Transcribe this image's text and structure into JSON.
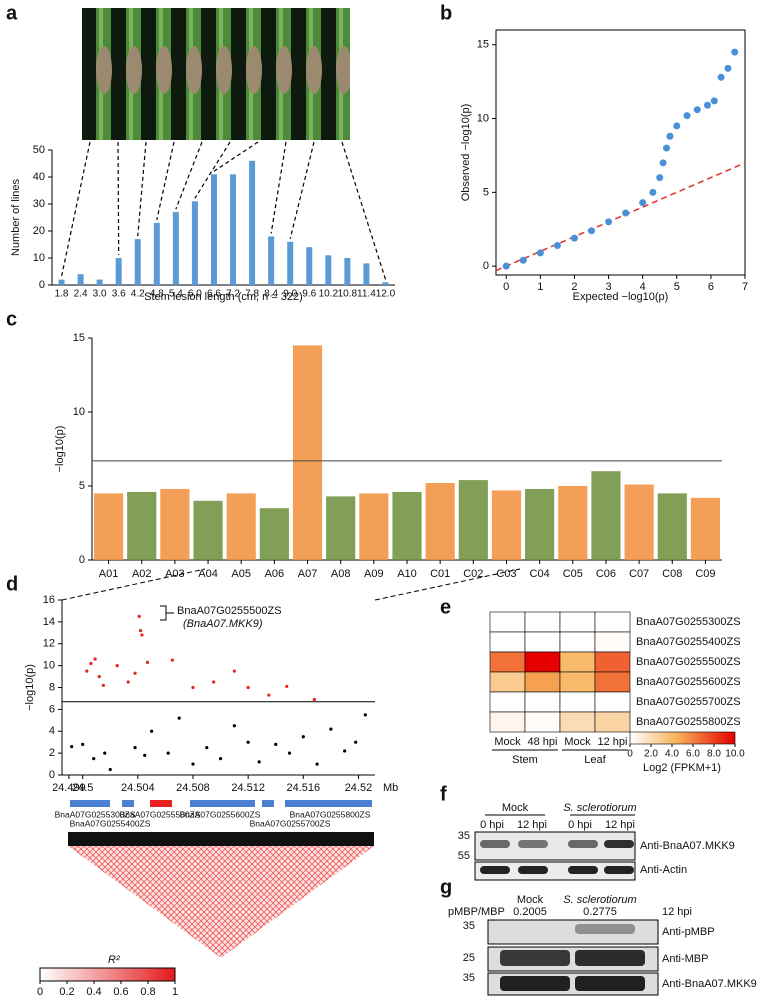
{
  "panel_labels": [
    "a",
    "b",
    "c",
    "d",
    "e",
    "f",
    "g"
  ],
  "chart_data": [
    {
      "type": "bar",
      "categories": [
        "1.8",
        "2.4",
        "3.0",
        "3.6",
        "4.2",
        "4.8",
        "5.4",
        "6.0",
        "6.6",
        "7.2",
        "7.8",
        "8.4",
        "9.0",
        "9.6",
        "10.2",
        "10.8",
        "11.4",
        "12.0"
      ],
      "values": [
        2,
        4,
        2,
        10,
        17,
        23,
        27,
        31,
        41,
        41,
        46,
        18,
        16,
        14,
        11,
        10,
        8,
        1
      ],
      "color": "#5b9bd5",
      "ylim": [
        0,
        50
      ],
      "yticks": [
        0,
        10,
        20,
        30,
        40,
        50
      ],
      "xlabel": "Stem lesion length (cm, n = 322)",
      "ylabel": "Number of lines"
    },
    {
      "type": "scatter",
      "x": [
        0,
        0.5,
        1,
        1.5,
        2,
        2.5,
        3,
        3.5,
        4,
        4.3,
        4.5,
        4.6,
        4.7,
        4.8,
        5,
        5.3,
        5.6,
        5.9,
        6.1,
        6.3,
        6.5,
        6.7
      ],
      "values": [
        0,
        0.4,
        0.9,
        1.4,
        1.9,
        2.4,
        3,
        3.6,
        4.3,
        5,
        6,
        7,
        8,
        8.8,
        9.5,
        10.2,
        10.6,
        10.9,
        11.2,
        12.8,
        13.4,
        14.5
      ],
      "color": "#4a90d9",
      "reference_line": true,
      "reference_color": "#e0302a",
      "xlim": [
        -0.3,
        7
      ],
      "ylim": [
        -0.6,
        16
      ],
      "xticks": [
        0,
        1,
        2,
        3,
        4,
        5,
        6,
        7
      ],
      "yticks": [
        0,
        5,
        10,
        15
      ],
      "xlabel": "Expected −log10(p)",
      "ylabel": "Observed −log10(p)"
    },
    {
      "type": "manhattan",
      "categories": [
        "A01",
        "A02",
        "A03",
        "A04",
        "A05",
        "A06",
        "A07",
        "A08",
        "A09",
        "A10",
        "C01",
        "C02",
        "C03",
        "C04",
        "C05",
        "C06",
        "C07",
        "C08",
        "C09"
      ],
      "values": [
        4.5,
        4.6,
        4.8,
        4.0,
        4.5,
        3.5,
        14.5,
        4.3,
        4.5,
        4.6,
        5.2,
        5.4,
        4.7,
        4.8,
        5.0,
        6.0,
        5.1,
        4.5,
        4.2
      ],
      "colors": [
        "#f28e3b",
        "#6b8e3a"
      ],
      "threshold": 6.7,
      "ylim": [
        0,
        15
      ],
      "yticks": [
        0,
        5,
        10,
        15
      ],
      "ylabel": "−log10(p)"
    },
    {
      "type": "region",
      "x": [
        24.5003,
        24.5006,
        24.5009,
        24.5012,
        24.5015,
        24.5025,
        24.5033,
        24.5038,
        24.5041,
        24.5042,
        24.5043,
        24.5047,
        24.5065,
        24.508,
        24.5095,
        24.511,
        24.512,
        24.5135,
        24.5148,
        24.5168,
        24.4992,
        24.5,
        24.5008,
        24.5016,
        24.502,
        24.5038,
        24.5045,
        24.505,
        24.5062,
        24.507,
        24.508,
        24.509,
        24.51,
        24.511,
        24.512,
        24.5128,
        24.514,
        24.515,
        24.516,
        24.517,
        24.518,
        24.519,
        24.5198,
        24.5205
      ],
      "values": [
        9.5,
        10.2,
        10.6,
        9,
        8.2,
        10,
        8.5,
        9.3,
        14.5,
        13.2,
        12.8,
        10.3,
        10.5,
        8,
        8.5,
        9.5,
        8,
        7.3,
        8.1,
        6.9,
        2.6,
        2.8,
        1.5,
        2,
        0.5,
        2.5,
        1.8,
        4,
        2,
        5.2,
        1,
        2.5,
        1.5,
        4.5,
        3,
        1.2,
        2.8,
        2,
        3.5,
        1,
        4.2,
        2.2,
        3,
        5.5
      ],
      "threshold": 6.7,
      "color_above": "#e8231f",
      "color_below": "#000000",
      "xlim": [
        24.4985,
        24.5212
      ],
      "xticks": [
        24.499,
        24.5,
        24.504,
        24.508,
        24.512,
        24.516,
        24.52
      ],
      "xunit": "Mb",
      "ylim": [
        0,
        16
      ],
      "yticks": [
        0,
        2,
        4,
        6,
        8,
        10,
        12,
        14,
        16
      ],
      "ylabel": "−log10(p)",
      "annotation": [
        "BnaA07G0255500ZS",
        "(BnaA07.MKK9)"
      ],
      "genes": [
        "BnaA07G0255300ZS",
        "BnaA07G0255400ZS",
        "BnaA07G0255500ZS",
        "BnaA07G0255600ZS",
        "BnaA07G0255700ZS",
        "BnaA07G0255800ZS"
      ],
      "highlight_gene": 2,
      "highlight_color": "#e8231f",
      "ld_legend": {
        "title": "R²",
        "ticks": [
          0,
          0.2,
          0.4,
          0.6,
          0.8,
          1
        ]
      }
    },
    {
      "type": "heatmap",
      "rows": [
        "BnaA07G0255300ZS",
        "BnaA07G0255400ZS",
        "BnaA07G0255500ZS",
        "BnaA07G0255600ZS",
        "BnaA07G0255700ZS",
        "BnaA07G0255800ZS"
      ],
      "columns": [
        "Mock",
        "48 hpi",
        "Mock",
        "12 hpi"
      ],
      "groups": [
        "Stem",
        "Leaf"
      ],
      "values": [
        [
          0,
          0,
          0,
          0
        ],
        [
          0,
          0,
          0,
          0.2
        ],
        [
          6.5,
          10,
          4,
          7
        ],
        [
          3,
          5,
          4,
          6.5
        ],
        [
          0,
          0,
          0,
          0
        ],
        [
          0.5,
          0.2,
          2,
          2.5
        ]
      ],
      "highlight_row": 2,
      "highlight_color": "#e8231f",
      "zlim": [
        0,
        10
      ],
      "zticks": [
        0,
        {
          "value": 2,
          "label": "2.0"
        },
        {
          "value": 4,
          "label": "4.0"
        },
        {
          "value": 6,
          "label": "6.0"
        },
        {
          "value": 8,
          "label": "8.0"
        },
        {
          "value": 10,
          "label": "10.0"
        }
      ],
      "zlabel": "Log2 (FPKM+1)"
    }
  ],
  "blots": {
    "f": {
      "conditions": [
        "Mock",
        "S. sclerotiorum"
      ],
      "lanes": [
        "0 hpi",
        "12 hpi",
        "0 hpi",
        "12 hpi"
      ],
      "markers": [
        "35",
        "55"
      ],
      "antibodies": [
        "Anti-BnaA07.MKK9",
        "Anti-Actin"
      ]
    },
    "g": {
      "ratio_label": "pMBP/MBP",
      "conditions": [
        "Mock",
        "S. sclerotiorum"
      ],
      "ratios": [
        "0.2005",
        "0.2775"
      ],
      "time": "12 hpi",
      "markers": [
        "35",
        "25",
        "35"
      ],
      "antibodies": [
        "Anti-pMBP",
        "Anti-MBP",
        "Anti-BnaA07.MKK9"
      ]
    }
  }
}
